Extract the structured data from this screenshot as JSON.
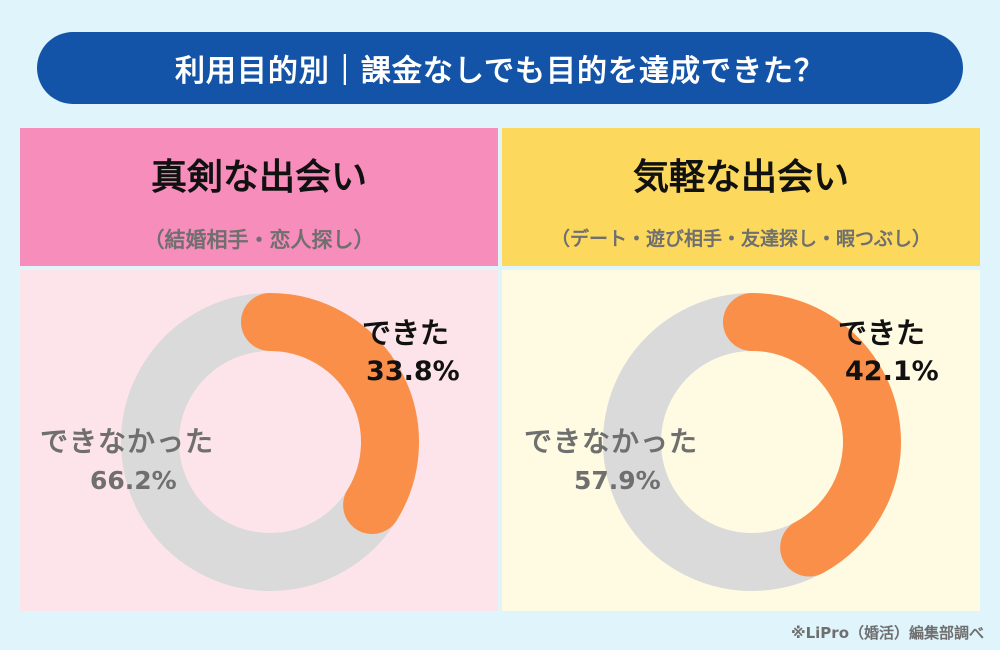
{
  "title": "利用目的別｜課金なしでも目的を達成できた？",
  "source": "※LiPro（婚活）編集部調べ",
  "colors": {
    "yes": "#fa8f4a",
    "no": "#dadada"
  },
  "chart_data": [
    {
      "type": "pie",
      "title": "真剣な出会い",
      "subtitle": "（結婚相手・恋人探し）",
      "slices": [
        {
          "label": "できた",
          "value": 33.8,
          "value_label": "33.8%"
        },
        {
          "label": "できなかった",
          "value": 66.2,
          "value_label": "66.2%"
        }
      ]
    },
    {
      "type": "pie",
      "title": "気軽な出会い",
      "subtitle": "（デート・遊び相手・友達探し・暇つぶし）",
      "slices": [
        {
          "label": "できた",
          "value": 42.1,
          "value_label": "42.1%"
        },
        {
          "label": "できなかった",
          "value": 57.9,
          "value_label": "57.9%"
        }
      ]
    }
  ]
}
